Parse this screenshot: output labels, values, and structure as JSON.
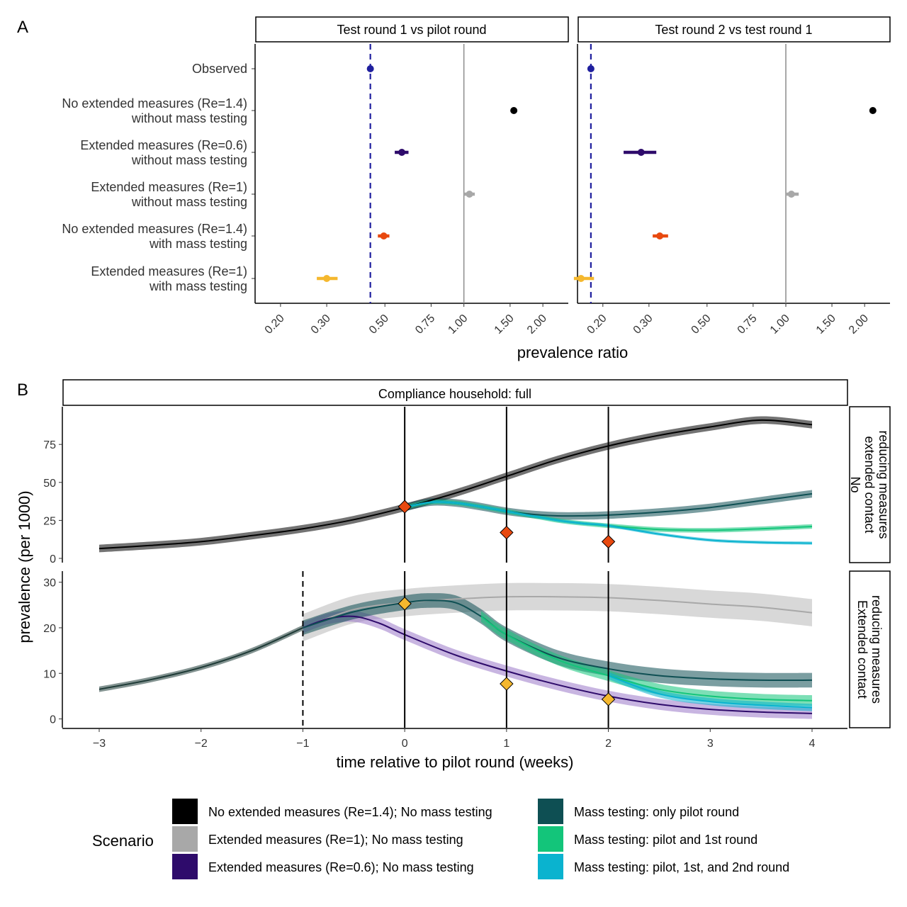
{
  "panel_a_tag": "A",
  "panel_b_tag": "B",
  "colors": {
    "no_ext_no_mass": "#000000",
    "ext_re1_no_mass": "#a8a8a8",
    "ext_re06_no_mass": "#2e0b6b",
    "no_ext_with_mass": "#e8490f",
    "ext_with_mass": "#f5b82e",
    "observed": "#1f1f9e",
    "mt_pilot": "#0e4f53",
    "mt_pilot_1st": "#13c57a",
    "mt_all": "#0ab3cf",
    "purple_band": "#9a79c8"
  },
  "chart_data": [
    {
      "type": "scatter",
      "panel": "A",
      "xlabel": "prevalence ratio",
      "x_scale": "log",
      "xlim": [
        0.16,
        2.5
      ],
      "x_ticks": [
        "0.20",
        "0.30",
        "0.50",
        "0.75",
        "1.00",
        "1.50",
        "2.00"
      ],
      "x_tick_values": [
        0.2,
        0.3,
        0.5,
        0.75,
        1.0,
        1.5,
        2.0
      ],
      "categories": [
        "Observed",
        "No extended measures (Re=1.4)\nwithout mass testing",
        "Extended measures (Re=0.6)\nwithout mass testing",
        "Extended measures (Re=1)\nwithout mass testing",
        "No extended measures (Re=1.4)\nwith mass testing",
        "Extended measures (Re=1)\nwith mass testing"
      ],
      "facets": [
        {
          "title": "Test round 1 vs pilot round",
          "reference_dashed": 0.44,
          "reference_solid": 1.0,
          "points": [
            {
              "est": 0.44,
              "lo": 0.43,
              "hi": 0.45,
              "color": "#1f1f9e"
            },
            {
              "est": 1.55,
              "lo": 1.52,
              "hi": 1.58,
              "color": "#000000"
            },
            {
              "est": 0.58,
              "lo": 0.545,
              "hi": 0.615,
              "color": "#2e0b6b"
            },
            {
              "est": 1.05,
              "lo": 1.0,
              "hi": 1.1,
              "color": "#a8a8a8"
            },
            {
              "est": 0.495,
              "lo": 0.47,
              "hi": 0.52,
              "color": "#e8490f"
            },
            {
              "est": 0.3,
              "lo": 0.275,
              "hi": 0.33,
              "color": "#f5b82e"
            }
          ]
        },
        {
          "title": "Test round 2 vs test round 1",
          "reference_dashed": 0.18,
          "reference_solid": 1.0,
          "points": [
            {
              "est": 0.18,
              "lo": 0.175,
              "hi": 0.185,
              "color": "#1f1f9e"
            },
            {
              "est": 2.15,
              "lo": 2.1,
              "hi": 2.2,
              "color": "#000000"
            },
            {
              "est": 0.28,
              "lo": 0.24,
              "hi": 0.32,
              "color": "#2e0b6b"
            },
            {
              "est": 1.05,
              "lo": 1.0,
              "hi": 1.12,
              "color": "#a8a8a8"
            },
            {
              "est": 0.33,
              "lo": 0.31,
              "hi": 0.355,
              "color": "#e8490f"
            },
            {
              "est": 0.165,
              "lo": 0.155,
              "hi": 0.185,
              "color": "#f5b82e"
            }
          ]
        }
      ]
    },
    {
      "type": "line",
      "panel": "B",
      "top_strip": "Compliance household: full",
      "xlabel": "time relative to pilot round (weeks)",
      "ylabel": "prevalence (per 1000)",
      "xlim": [
        -3,
        4
      ],
      "x_ticks": [
        "−3",
        "−2",
        "−1",
        "0",
        "1",
        "2",
        "3",
        "4"
      ],
      "x_tick_values": [
        -3,
        -2,
        -1,
        0,
        1,
        2,
        3,
        4
      ],
      "vlines_solid": [
        0,
        1,
        2
      ],
      "rows": [
        {
          "strip": [
            "No",
            "extended contact",
            "reducing measures"
          ],
          "ylim": [
            0,
            97
          ],
          "y_ticks": [
            0,
            25,
            50,
            75
          ],
          "series": [
            {
              "color": "#000000",
              "band": 2.5,
              "x": [
                -3,
                -2.5,
                -2,
                -1.5,
                -1,
                -0.5,
                0,
                0.5,
                1,
                1.5,
                2,
                2.5,
                3,
                3.5,
                4
              ],
              "y": [
                6.5,
                8.5,
                11,
                15,
                19.5,
                25.5,
                33.5,
                43,
                54,
                65,
                74,
                81,
                86.5,
                91,
                88
              ]
            },
            {
              "color": "#0e4f53",
              "band": 2.5,
              "x": [
                0,
                0.25,
                0.5,
                0.75,
                1,
                1.25,
                1.5,
                1.75,
                2,
                2.5,
                3,
                3.5,
                4
              ],
              "y": [
                33.5,
                37,
                36.5,
                34,
                31,
                29,
                28,
                28,
                28.5,
                30.5,
                33.5,
                38,
                42.5
              ]
            },
            {
              "color": "#13c57a",
              "band": 1.5,
              "x": [
                0,
                0.25,
                0.5,
                0.75,
                1,
                1.25,
                1.5,
                1.75,
                2,
                2.5,
                3,
                3.5,
                4
              ],
              "y": [
                33.5,
                37,
                36.5,
                34,
                31,
                28,
                25,
                23,
                21.5,
                19,
                18.5,
                19.5,
                21
              ]
            },
            {
              "color": "#0ab3cf",
              "band": 1.0,
              "x": [
                0,
                0.25,
                0.5,
                0.75,
                1,
                1.25,
                1.5,
                1.75,
                2,
                2.5,
                3,
                3.5,
                4
              ],
              "y": [
                33.5,
                37,
                36.5,
                34,
                31,
                28,
                25,
                23,
                21.5,
                16,
                12,
                10.5,
                10
              ]
            }
          ],
          "observed": [
            {
              "x": 0,
              "y": 34,
              "color": "#e8490f"
            },
            {
              "x": 1,
              "y": 17,
              "color": "#e8490f"
            },
            {
              "x": 2,
              "y": 11,
              "color": "#e8490f"
            }
          ]
        },
        {
          "strip": [
            "Extended contact",
            "reducing measures"
          ],
          "ylim": [
            -1,
            31.5
          ],
          "y_ticks": [
            0,
            10,
            20,
            30
          ],
          "vline_dashed": -1,
          "series": [
            {
              "color": "#1e3a36",
              "band": 0.6,
              "x": [
                -3,
                -2.5,
                -2,
                -1.5,
                -1
              ],
              "y": [
                6.5,
                8.6,
                11.3,
                15,
                20
              ]
            },
            {
              "color": "#a8a8a8",
              "band": 3,
              "x": [
                -1,
                -0.5,
                0,
                0.5,
                1,
                1.5,
                2,
                2.5,
                3,
                3.5,
                4
              ],
              "y": [
                20,
                24,
                25.5,
                26.3,
                26.8,
                26.8,
                26.6,
                26,
                25.2,
                24.5,
                23.3
              ]
            },
            {
              "color": "#2e0b6b",
              "band": 1.2,
              "x": [
                -1,
                -0.75,
                -0.5,
                -0.25,
                0,
                0.5,
                1,
                1.5,
                2,
                2.5,
                3,
                3.5,
                4
              ],
              "y": [
                20,
                22,
                22.5,
                21,
                18.5,
                14,
                10.5,
                7.5,
                5,
                3.2,
                2.1,
                1.5,
                1.2
              ]
            },
            {
              "color": "#0e4f53",
              "band": 1.6,
              "x": [
                -1,
                -0.5,
                0,
                0.25,
                0.5,
                0.75,
                1,
                1.5,
                2,
                2.5,
                3,
                3.5,
                4
              ],
              "y": [
                20,
                23.5,
                25.5,
                26,
                25.5,
                22.5,
                18.5,
                13.5,
                11,
                9.5,
                8.8,
                8.5,
                8.5
              ]
            },
            {
              "color": "#13c57a",
              "band": 1.2,
              "x": [
                0.75,
                1,
                1.5,
                2,
                2.5,
                3,
                3.5,
                4
              ],
              "y": [
                22.5,
                18.5,
                13,
                9.5,
                6.5,
                5,
                4.3,
                4
              ]
            },
            {
              "color": "#0ab3cf",
              "band": 0.8,
              "x": [
                2,
                2.5,
                3,
                3.5,
                4
              ],
              "y": [
                9.5,
                5.5,
                3.8,
                3,
                2.5
              ]
            }
          ],
          "observed": [
            {
              "x": 0,
              "y": 25.3,
              "color": "#f5b82e"
            },
            {
              "x": 1,
              "y": 7.7,
              "color": "#f5b82e"
            },
            {
              "x": 2,
              "y": 4.3,
              "color": "#f5b82e"
            }
          ]
        }
      ]
    }
  ],
  "legend": {
    "title": "Scenario",
    "items": [
      {
        "label": "No extended measures (Re=1.4); No mass testing",
        "color": "#000000"
      },
      {
        "label": "Extended measures (Re=1); No mass testing",
        "color": "#a8a8a8"
      },
      {
        "label": "Extended measures (Re=0.6); No mass testing",
        "color": "#2e0b6b"
      },
      {
        "label": "Mass testing: only pilot round",
        "color": "#0e4f53"
      },
      {
        "label": "Mass testing: pilot and 1st round",
        "color": "#13c57a"
      },
      {
        "label": "Mass testing: pilot, 1st, and 2nd round",
        "color": "#0ab3cf"
      }
    ]
  }
}
